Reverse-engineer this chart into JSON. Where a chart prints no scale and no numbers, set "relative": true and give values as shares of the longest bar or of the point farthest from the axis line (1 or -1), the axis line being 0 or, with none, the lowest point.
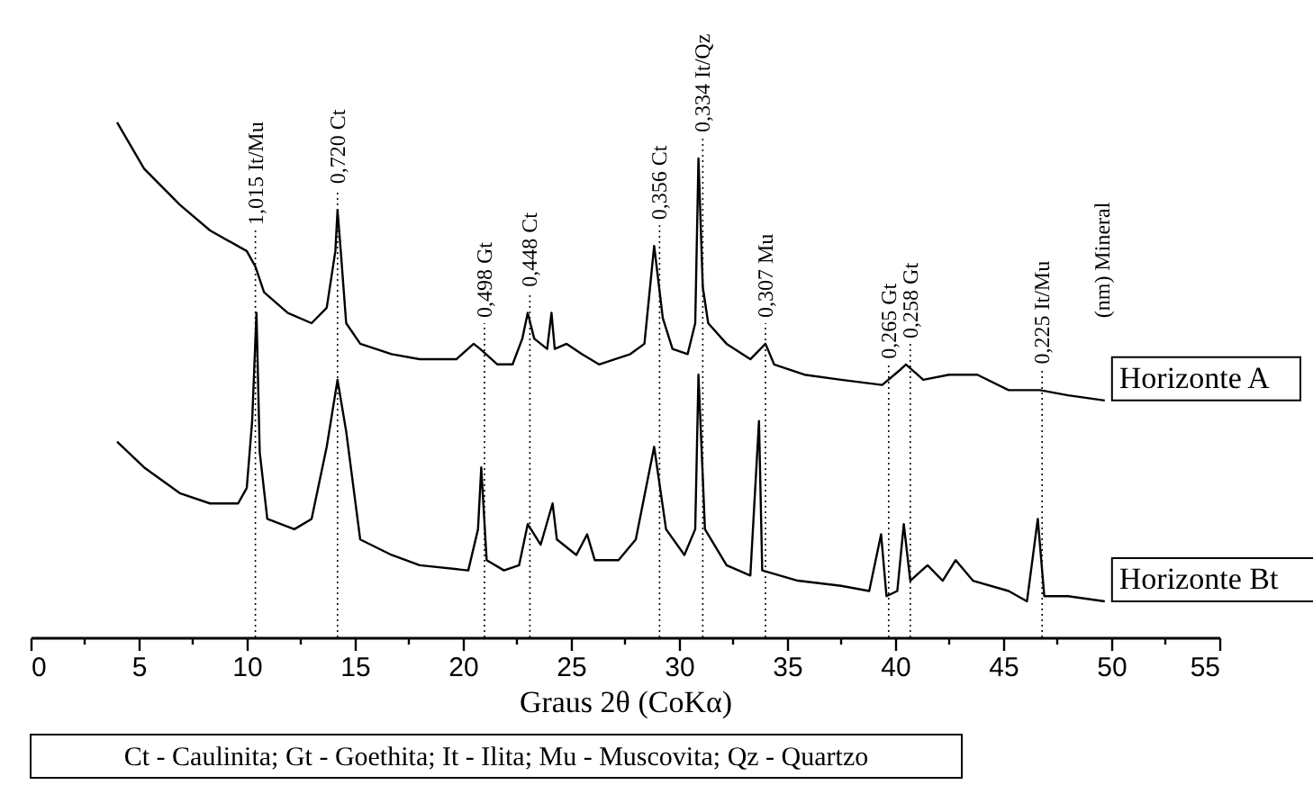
{
  "chart_data": {
    "type": "line",
    "relative": true,
    "xlabel": "Graus 2θ (CoKα)",
    "xlim": [
      0,
      55
    ],
    "xticks": [
      0,
      {
        "value": 2.5,
        "label": null
      },
      5,
      {
        "value": 7.5,
        "label": null
      },
      10,
      {
        "value": 12.5,
        "label": null
      },
      15,
      {
        "value": 17.5,
        "label": null
      },
      20,
      {
        "value": 22.5,
        "label": null
      },
      25,
      {
        "value": 27.5,
        "label": null
      },
      30,
      {
        "value": 32.5,
        "label": null
      },
      35,
      {
        "value": 37.5,
        "label": null
      },
      40,
      {
        "value": 42.5,
        "label": null
      },
      45,
      {
        "value": 47.5,
        "label": null
      },
      50,
      {
        "value": 52.5,
        "label": null
      },
      55
    ],
    "grid": false,
    "legend": false,
    "series": [
      {
        "name": "Horizonte A",
        "color": "#000000",
        "x": [
          4.0,
          5.25,
          6.9,
          8.3,
          10.0,
          10.4,
          10.8,
          11.9,
          13.0,
          13.7,
          14.1,
          14.2,
          14.35,
          14.6,
          15.25,
          16.7,
          18.0,
          19.7,
          20.5,
          20.8,
          21.6,
          22.3,
          22.75,
          23.0,
          23.3,
          23.9,
          24.1,
          24.25,
          24.8,
          25.5,
          26.3,
          27.75,
          28.4,
          28.85,
          29.25,
          29.7,
          30.4,
          30.75,
          30.9,
          31.1,
          31.35,
          32.2,
          33.3,
          34.0,
          34.4,
          35.8,
          37.5,
          39.4,
          40.25,
          40.5,
          41.3,
          42.5,
          43.8,
          45.25,
          46.7,
          48.0,
          49.7
        ],
        "values": [
          1.0,
          0.91,
          0.84,
          0.79,
          0.75,
          0.72,
          0.67,
          0.63,
          0.61,
          0.64,
          0.75,
          0.83,
          0.75,
          0.61,
          0.57,
          0.55,
          0.54,
          0.54,
          0.57,
          0.56,
          0.53,
          0.53,
          0.58,
          0.63,
          0.58,
          0.56,
          0.63,
          0.56,
          0.57,
          0.55,
          0.53,
          0.55,
          0.57,
          0.76,
          0.62,
          0.56,
          0.55,
          0.61,
          0.93,
          0.68,
          0.61,
          0.57,
          0.54,
          0.57,
          0.53,
          0.51,
          0.5,
          0.49,
          0.52,
          0.53,
          0.5,
          0.51,
          0.51,
          0.48,
          0.48,
          0.47,
          0.46
        ]
      },
      {
        "name": "Horizonte Bt",
        "color": "#000000",
        "x": [
          4.0,
          5.25,
          6.9,
          8.3,
          9.6,
          10.0,
          10.25,
          10.45,
          10.6,
          10.95,
          12.2,
          13.0,
          13.7,
          14.2,
          14.6,
          15.25,
          16.7,
          18.0,
          20.25,
          20.7,
          20.85,
          21.1,
          21.9,
          22.6,
          23.0,
          23.6,
          24.15,
          24.35,
          25.25,
          25.75,
          26.1,
          27.2,
          28.0,
          28.85,
          29.4,
          30.25,
          30.75,
          30.9,
          31.2,
          32.2,
          33.3,
          33.7,
          33.85,
          35.5,
          37.5,
          38.8,
          39.35,
          39.6,
          40.1,
          40.4,
          40.7,
          41.5,
          42.2,
          42.8,
          43.6,
          45.25,
          46.1,
          46.6,
          46.9,
          48.0,
          49.7
        ],
        "values": [
          0.38,
          0.33,
          0.28,
          0.26,
          0.26,
          0.29,
          0.42,
          0.63,
          0.36,
          0.23,
          0.21,
          0.23,
          0.37,
          0.5,
          0.4,
          0.19,
          0.16,
          0.14,
          0.13,
          0.21,
          0.33,
          0.15,
          0.13,
          0.14,
          0.22,
          0.18,
          0.26,
          0.19,
          0.16,
          0.2,
          0.15,
          0.15,
          0.19,
          0.37,
          0.21,
          0.16,
          0.21,
          0.51,
          0.21,
          0.14,
          0.12,
          0.42,
          0.13,
          0.11,
          0.1,
          0.09,
          0.2,
          0.08,
          0.09,
          0.22,
          0.11,
          0.14,
          0.11,
          0.15,
          0.11,
          0.09,
          0.07,
          0.23,
          0.08,
          0.08,
          0.07
        ]
      }
    ],
    "ref_lines": [
      {
        "axis": "x",
        "value": 10.4,
        "label": "1,015   It/Mu",
        "line_style": "dotted",
        "color": "#000000"
      },
      {
        "axis": "x",
        "value": 14.2,
        "label": "0,720   Ct",
        "line_style": "dotted",
        "color": "#000000"
      },
      {
        "axis": "x",
        "value": 21.0,
        "label": "0,498   Gt",
        "line_style": "dotted",
        "color": "#000000"
      },
      {
        "axis": "x",
        "value": 23.1,
        "label": "0,448   Ct",
        "line_style": "dotted",
        "color": "#000000"
      },
      {
        "axis": "x",
        "value": 29.1,
        "label": "0,356   Ct",
        "line_style": "dotted",
        "color": "#000000"
      },
      {
        "axis": "x",
        "value": 31.1,
        "label": "0,334   It/Qz",
        "line_style": "dotted",
        "color": "#000000"
      },
      {
        "axis": "x",
        "value": 34.0,
        "label": "0,307   Mu",
        "line_style": "dotted",
        "color": "#000000"
      },
      {
        "axis": "x",
        "value": 39.7,
        "label": "0,265   Gt",
        "line_style": "dotted",
        "color": "#000000"
      },
      {
        "axis": "x",
        "value": 40.7,
        "label": "0,258   Gt",
        "line_style": "dotted",
        "color": "#000000"
      },
      {
        "axis": "x",
        "value": 46.8,
        "label": "0,225   It/Mu",
        "line_style": "dotted",
        "color": "#000000"
      }
    ],
    "annotations": [
      "(nm)   Mineral",
      "Ct - Caulinita; Gt - Goethita; It - Ilita; Mu - Muscovita; Qz - Quartzo"
    ]
  }
}
